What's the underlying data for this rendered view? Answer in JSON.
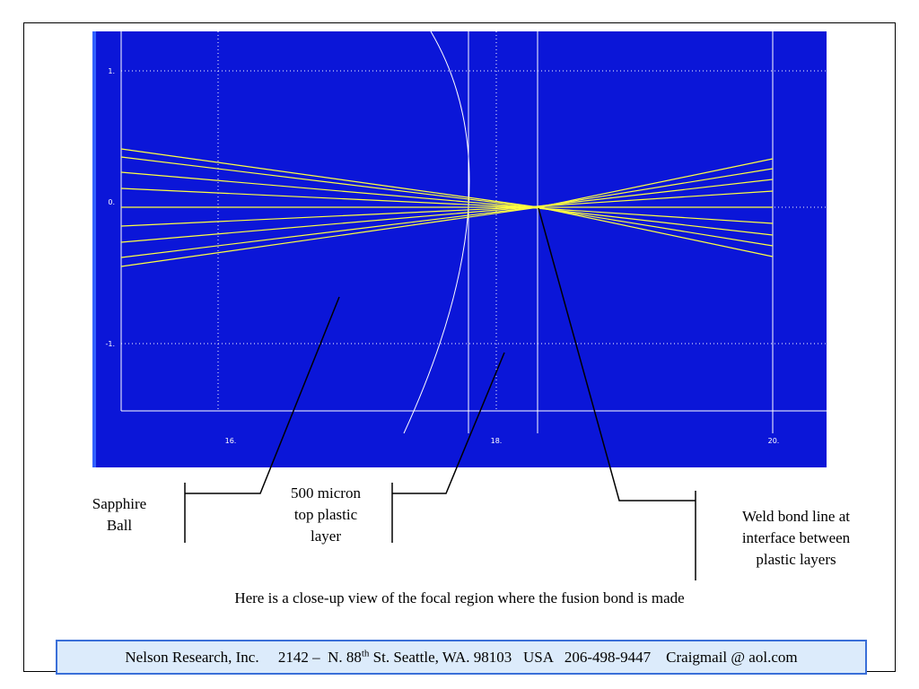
{
  "plot": {
    "yticks": [
      "1.",
      "0.",
      "-1."
    ],
    "xticks": [
      "16.",
      "18.",
      "20."
    ]
  },
  "annotations": [
    {
      "lines": [
        "Sapphire",
        "Ball"
      ]
    },
    {
      "lines": [
        "500 micron",
        "top plastic",
        "layer"
      ]
    },
    {
      "lines": [
        "Weld bond line at",
        "interface between",
        "plastic layers"
      ]
    }
  ],
  "caption": "Here is a close-up view of the focal region where the fusion bond is made",
  "footer": {
    "company": "Nelson Research, Inc.",
    "street": "2142 –  N. 88",
    "street_sup": "th",
    "city": "St. Seattle, WA. 98103",
    "country": "USA",
    "phone": "206-498-9447",
    "email": "Craigmail @ aol.com"
  }
}
